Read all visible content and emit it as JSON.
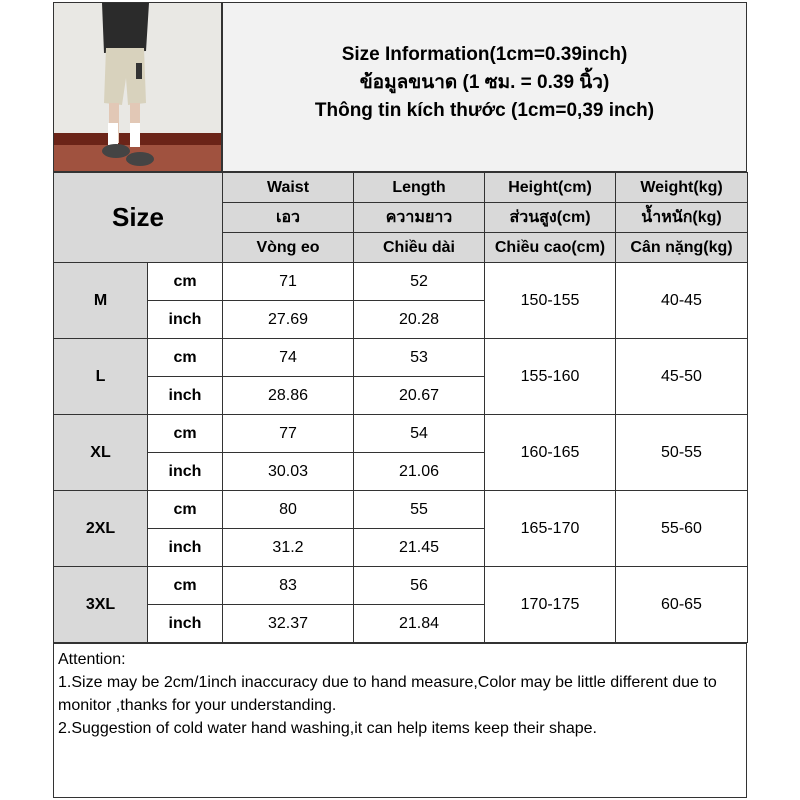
{
  "title_lines": [
    "Size Information(1cm=0.39inch)",
    "ข้อมูลขนาด (1 ซม. = 0.39 นิ้ว)",
    "Thông tin kích thước (1cm=0,39 inch)"
  ],
  "size_header": "Size",
  "columns": [
    [
      "Waist",
      "เอว",
      "Vòng eo"
    ],
    [
      "Length",
      "ความยาว",
      "Chiều dài"
    ],
    [
      "Height(cm)",
      "ส่วนสูง(cm)",
      "Chiều cao(cm)"
    ],
    [
      "Weight(kg)",
      "น้ำหนัก(kg)",
      "Cân nặng(kg)"
    ]
  ],
  "units": [
    "cm",
    "inch"
  ],
  "rows": [
    {
      "size": "M",
      "cm": [
        "71",
        "52"
      ],
      "inch": [
        "27.69",
        "20.28"
      ],
      "height": "150-155",
      "weight": "40-45"
    },
    {
      "size": "L",
      "cm": [
        "74",
        "53"
      ],
      "inch": [
        "28.86",
        "20.67"
      ],
      "height": "155-160",
      "weight": "45-50"
    },
    {
      "size": "XL",
      "cm": [
        "77",
        "54"
      ],
      "inch": [
        "30.03",
        "21.06"
      ],
      "height": "160-165",
      "weight": "50-55"
    },
    {
      "size": "2XL",
      "cm": [
        "80",
        "55"
      ],
      "inch": [
        "31.2",
        "21.45"
      ],
      "height": "165-170",
      "weight": "55-60"
    },
    {
      "size": "3XL",
      "cm": [
        "83",
        "56"
      ],
      "inch": [
        "32.37",
        "21.84"
      ],
      "height": "170-175",
      "weight": "60-65"
    }
  ],
  "attention": [
    "Attention:",
    "1.Size may be 2cm/1inch inaccuracy due to hand measure,Color may be little different due to monitor ,thanks for your understanding.",
    "2.Suggestion of cold water hand washing,it can help items keep their shape."
  ]
}
